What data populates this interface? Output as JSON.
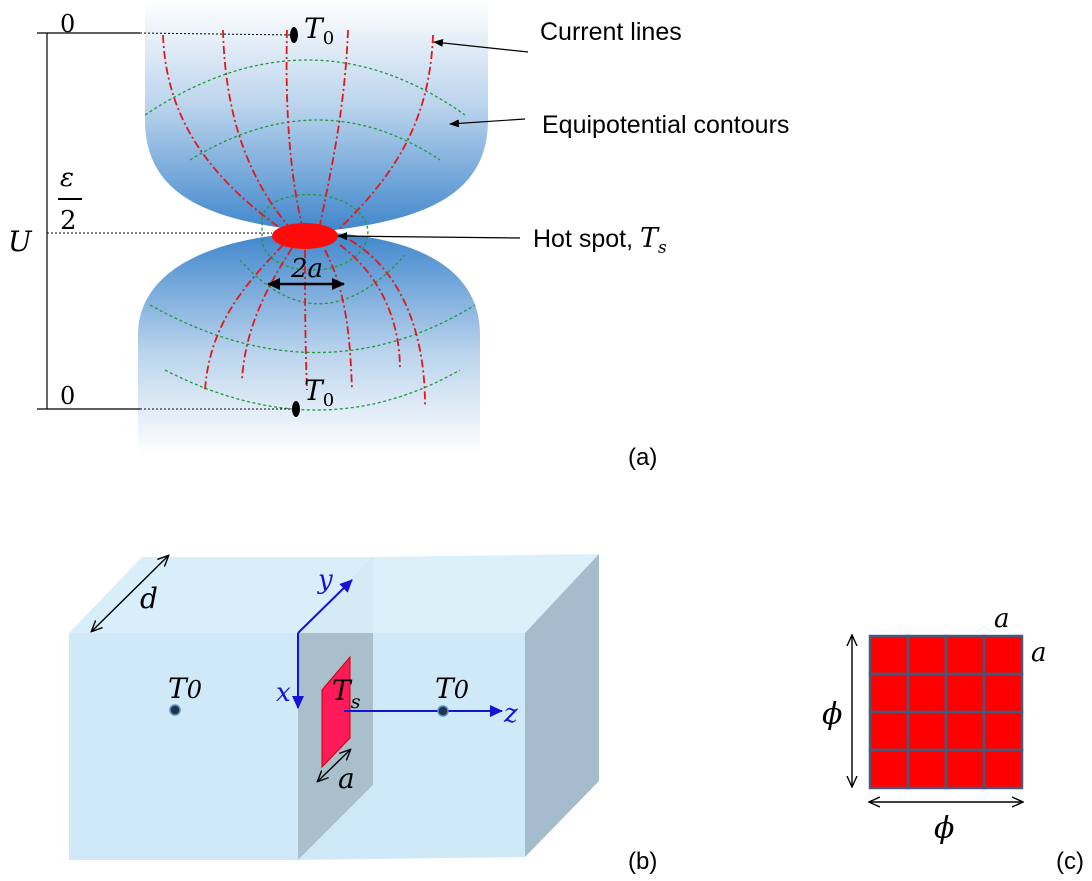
{
  "panels": {
    "a": {
      "label": "(a)",
      "callouts": {
        "current_lines": "Current lines",
        "equipotential_contours": "Equipotential contours",
        "hot_spot": "Hot spot, ",
        "hot_spot_symbol": "T",
        "hot_spot_subscript": "s"
      },
      "potential_axis": {
        "U": "U",
        "top_zero": "0",
        "bottom_zero": "0",
        "half_eps_num": "ε",
        "half_eps_den": "2"
      },
      "temp_top": {
        "symbol": "T",
        "subscript": "0"
      },
      "temp_bottom": {
        "symbol": "T",
        "subscript": "0"
      },
      "spot_width": "2a"
    },
    "b": {
      "label": "(b)",
      "depth": "d",
      "axis_x": "x",
      "axis_y": "y",
      "axis_z": "z",
      "temp_left": {
        "symbol": "T",
        "subscript": "0"
      },
      "temp_right": {
        "symbol": "T",
        "subscript": "0"
      },
      "temp_spot": {
        "symbol": "T",
        "subscript": "s"
      },
      "spot_size": "a"
    },
    "c": {
      "label": "(c)",
      "side_top": "a",
      "side_right": "a",
      "phi_vertical": "ϕ",
      "phi_horizontal": "ϕ",
      "grid_rows": 4,
      "grid_cols": 4
    }
  },
  "colors": {
    "contact_blue": "#3f86cc",
    "current_red": "#e01818",
    "equipotential_green": "#1e9a3a",
    "hot_spot_red": "#ff0a0a",
    "box_face": "#cfe9f9",
    "box_side": "#a4bccb",
    "axis_blue": "#1414d2",
    "grid_fill": "#ff0000",
    "grid_line": "#4a5878"
  }
}
